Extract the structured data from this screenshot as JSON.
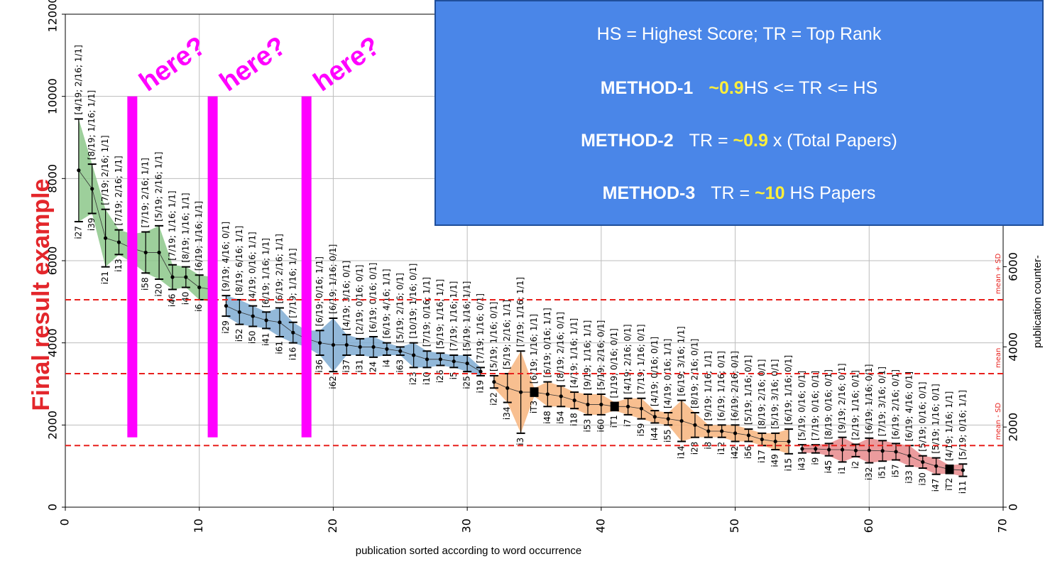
{
  "chart_data": {
    "type": "errorbar-area",
    "title": "Final result example",
    "xlabel": "publication sorted according to word occurrence",
    "y2label": "publication counter-",
    "xlim": [
      0,
      70
    ],
    "xticks": [
      0,
      10,
      20,
      30,
      40,
      50,
      60,
      70
    ],
    "ylim": [
      0,
      12000
    ],
    "yticks": [
      0,
      2000,
      4000,
      6000,
      8000,
      10000,
      12000
    ],
    "y2lim": [
      0,
      12300
    ],
    "y2ticks": [
      0,
      2000,
      4000,
      6000
    ],
    "grid": true,
    "hlines": [
      {
        "value": 5050,
        "label": "mean + SD"
      },
      {
        "value": 3250,
        "label": "mean"
      },
      {
        "value": 1500,
        "label": "mean - SD"
      }
    ],
    "hline_color": "#e8201c",
    "markers": {
      "x": [
        5,
        11,
        18
      ],
      "label": "here?",
      "color": "#ff00ff",
      "ymin": 1700,
      "ymax": 10000
    },
    "series": [
      {
        "color": "#8cc78a",
        "x": [
          1,
          2,
          3,
          4,
          5,
          6,
          7,
          8,
          9,
          10,
          11
        ],
        "values": [
          8200,
          7750,
          6550,
          6450,
          6300,
          6200,
          6200,
          5600,
          5600,
          5350,
          5300
        ],
        "errors": [
          1250,
          600,
          700,
          300,
          350,
          500,
          650,
          300,
          250,
          300,
          300
        ],
        "labels": [
          "i27",
          "i39",
          "i21",
          "i13",
          null,
          "i58",
          "i20",
          "i46",
          "i40",
          "i6",
          null
        ],
        "annotations": [
          "[4/19; 2/16; 1/1]",
          "[8/19; 1/16; 1/1]",
          "[7/19; 2/16; 1/1]",
          "[7/19; 2/16; 1/1]",
          null,
          "[7/19; 2/16; 1/1]",
          "[5/19; 2/16; 1/1]",
          "[7/19; 1/16; 1/1]",
          "[8/19; 1/16; 1/1]",
          "[6/19; 1/16; 1/1]",
          null
        ],
        "square_x": []
      },
      {
        "color": "#7fabd2",
        "x": [
          12,
          13,
          14,
          15,
          16,
          17,
          18,
          19,
          20,
          21,
          22,
          23,
          24,
          25,
          26,
          27,
          28,
          29,
          30,
          31
        ],
        "values": [
          4900,
          4750,
          4650,
          4550,
          4500,
          4250,
          4100,
          4000,
          3950,
          3950,
          3900,
          3900,
          3850,
          3800,
          3700,
          3600,
          3600,
          3550,
          3500,
          3300
        ],
        "errors": [
          250,
          300,
          250,
          200,
          350,
          250,
          200,
          300,
          650,
          250,
          200,
          250,
          150,
          100,
          300,
          200,
          150,
          150,
          200,
          100
        ],
        "labels": [
          "i29",
          "i52",
          "i50",
          "i41",
          "i61",
          "i16",
          null,
          "i36",
          "i62",
          "i37",
          "i31",
          "i24",
          "i4",
          "i63",
          "i23",
          "i10",
          "i26",
          "i5",
          "i25",
          "i19"
        ],
        "annotations": [
          "[9/19; 4/16; 0/1]",
          "[8/19; 6/16; 1/1]",
          "[4/19; 0/16; 1/1]",
          "[6/19; 1/16; 1/1]",
          "[6/19; 2/16; 1/1]",
          "[7/19; 1/16; 1/1]",
          null,
          "[6/19; 0/16; 1/1]",
          "[6/19; 1/16; 0/1]",
          "[4/19; 3/16; 0/1]",
          "[2/19; 0/16; 0/1]",
          "[6/19; 0/16; 0/1]",
          "[6/19; 4/16; 1/1]",
          "[5/19; 2/16; 0/1]",
          "[10/19; 1/16; 0/1]",
          "[7/19; 0/16; 1/1]",
          "[5/19; 1/16; 1/1]",
          "[7/19; 1/16; 1/1]",
          "[5/19; 1/16; 1/1]",
          "[7/19; 1/16; 0/1]"
        ],
        "square_x": []
      },
      {
        "color": "#f7b47c",
        "x": [
          32,
          33,
          34,
          35,
          36,
          37,
          38,
          39,
          40,
          41,
          42,
          43,
          44,
          45,
          46,
          47,
          48,
          49,
          50,
          51,
          52,
          53,
          54
        ],
        "values": [
          3050,
          2900,
          2800,
          2800,
          2750,
          2700,
          2600,
          2500,
          2500,
          2450,
          2450,
          2400,
          2200,
          2150,
          2100,
          2000,
          1850,
          1850,
          1800,
          1750,
          1650,
          1600,
          1600
        ],
        "errors": [
          150,
          350,
          1000,
          100,
          300,
          250,
          200,
          250,
          250,
          100,
          200,
          250,
          150,
          150,
          500,
          300,
          150,
          150,
          200,
          150,
          150,
          200,
          300
        ],
        "labels": [
          "i22",
          "i34",
          "i3",
          "iT3",
          "i48",
          "i54",
          "i18",
          "i53",
          "i60",
          "iT1",
          "i7",
          "i59",
          "i44",
          "i55",
          "i14",
          "i28",
          "i8",
          "i12",
          "i42",
          "i56",
          "i17",
          "i49",
          "i15"
        ],
        "annotations": [
          "[5/19; 1/16; 0/1]",
          "[5/19; 2/16; 1/1]",
          "[7/19; 1/16; 1/1]",
          "[6/19; 1/16; 1/1]",
          "[6/19; 0/16; 1/1]",
          "[8/19; 2/16; 0/1]",
          "[4/19; 1/16; 1/1]",
          "[9/19; 1/16; 1/1]",
          "[5/19; 2/16; 0/1]",
          "[1/19; 0/16; 0/1]",
          "[4/19; 2/16; 0/1]",
          "[7/19; 1/16; 0/1]",
          "[4/19; 0/16; 0/1]",
          "[4/19; 0/16; 1/1]",
          "[6/19; 3/16; 1/1]",
          "[8/19; 2/16; 0/1]",
          "[9/19; 1/16; 1/1]",
          "[6/19; 1/16; 0/1]",
          "[6/19; 2/16; 0/1]",
          "[5/19; 1/16; 0/1]",
          "[8/19; 2/16; 0/1]",
          "[5/19; 3/16; 0/1]",
          "[6/19; 1/16; 0/1]"
        ],
        "square_x": [
          35,
          41
        ]
      },
      {
        "color": "#e88a8c",
        "x": [
          55,
          56,
          57,
          58,
          59,
          60,
          61,
          62,
          63,
          64,
          65,
          66,
          67
        ],
        "values": [
          1420,
          1420,
          1400,
          1400,
          1380,
          1380,
          1370,
          1350,
          1250,
          1100,
          1000,
          920,
          900
        ],
        "errors": [
          100,
          100,
          150,
          300,
          150,
          300,
          250,
          200,
          250,
          150,
          200,
          100,
          150
        ],
        "labels": [
          "i43",
          "i9",
          "i45",
          "i1",
          "i2",
          "i32",
          "i51",
          "i57",
          "i33",
          "i30",
          "i47",
          "iT2",
          "i11"
        ],
        "annotations": [
          "[5/19; 0/16; 0/1]",
          "[7/19; 0/16; 0/1]",
          "[8/19; 0/16; 0/1]",
          "[9/19; 2/16; 0/1]",
          "[2/19; 1/16; 0/1]",
          "[6/19; 1/16; 0/1]",
          "[7/19; 3/16; 0/1]",
          "[6/19; 2/16; 0/1]",
          "[6/19; 4/16; 0/1]",
          "[5/19; 0/16; 0/1]",
          "[5/19; 1/16; 0/1]",
          "[4/19; 1/16; 1/1]",
          "[5/19; 0/16; 1/1]"
        ],
        "square_x": [
          66
        ]
      }
    ]
  },
  "info_box": {
    "line1": "HS = Highest Score; TR = Top Rank",
    "method1": {
      "name": "METHOD-1",
      "factor": "~0.9",
      "rest": "HS <= TR <= HS"
    },
    "method2": {
      "name": "METHOD-2",
      "pre": "TR =",
      "factor": "~0.9",
      "rest": "x (Total Papers)"
    },
    "method3": {
      "name": "METHOD-3",
      "pre": "TR =",
      "factor": "~10",
      "rest": "HS Papers"
    }
  }
}
